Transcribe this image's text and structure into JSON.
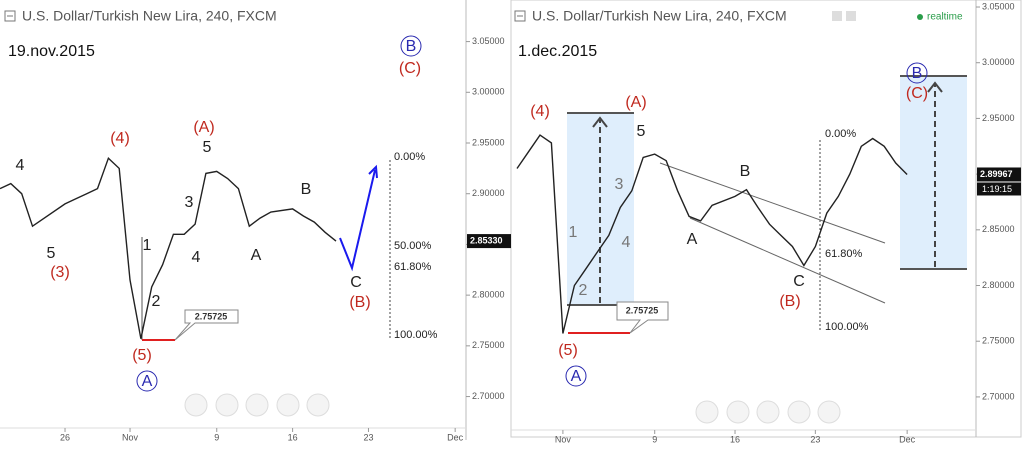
{
  "chart_data": [
    {
      "type": "line",
      "title": "U.S. Dollar/Turkish New Lira, 240, FXCM",
      "subtitle": "19.nov.2015",
      "x": [
        "2015-10-20",
        "2015-10-21",
        "2015-10-22",
        "2015-10-23",
        "2015-10-26",
        "2015-10-27",
        "2015-10-28",
        "2015-10-29",
        "2015-10-30",
        "2015-10-31",
        "2015-11-01",
        "2015-11-02",
        "2015-11-03",
        "2015-11-04",
        "2015-11-05",
        "2015-11-06",
        "2015-11-07",
        "2015-11-08",
        "2015-11-09",
        "2015-11-10",
        "2015-11-11",
        "2015-11-12",
        "2015-11-13",
        "2015-11-14",
        "2015-11-16",
        "2015-11-17",
        "2015-11-18",
        "2015-11-19",
        "2015-11-20"
      ],
      "series": [
        {
          "color": "#222222",
          "values": [
            2.905,
            2.91,
            2.9,
            2.868,
            2.89,
            2.895,
            2.9,
            2.905,
            2.935,
            2.925,
            2.815,
            2.757,
            2.808,
            2.83,
            2.86,
            2.86,
            2.87,
            2.92,
            2.922,
            2.915,
            2.905,
            2.868,
            2.876,
            2.882,
            2.885,
            2.878,
            2.872,
            2.862,
            2.8533
          ]
        }
      ],
      "xlim": [
        "2015-10-20",
        "2015-12-02"
      ],
      "xticks": [
        {
          "value": "2015-10-26",
          "label": "26"
        },
        {
          "value": "2015-11-01",
          "label": "Nov"
        },
        {
          "value": "2015-11-09",
          "label": "9"
        },
        {
          "value": "2015-11-16",
          "label": "16"
        },
        {
          "value": "2015-11-23",
          "label": "23"
        },
        {
          "value": "2015-12-01",
          "label": "Dec"
        }
      ],
      "ylim": [
        2.669,
        3.091
      ],
      "yticks": [
        {
          "value": 2.7,
          "label": "2.70000"
        },
        {
          "value": 2.75,
          "label": "2.75000"
        },
        {
          "value": 2.8,
          "label": "2.80000"
        },
        {
          "value": 2.85,
          "label": "2.85000"
        },
        {
          "value": 2.9,
          "label": "2.90000"
        },
        {
          "value": 2.95,
          "label": "2.95000"
        },
        {
          "value": 3.0,
          "label": "3.00000"
        },
        {
          "value": 3.05,
          "label": "3.05000"
        }
      ],
      "price_label": {
        "value": 2.8533,
        "label": "2.85330"
      },
      "callout": 2.75725,
      "labels": [
        "4",
        "5",
        "(3)",
        "(4)",
        "(A)",
        "5",
        "3",
        "4",
        "1",
        "2",
        "A",
        "B",
        "C",
        "(B)",
        "(5)",
        "A",
        "B",
        "(C)",
        "0.00%",
        "50.00%",
        "61.80%",
        "100.00%"
      ]
    },
    {
      "type": "line",
      "title": "U.S. Dollar/Turkish New Lira, 240, FXCM",
      "subtitle": "1.dec.2015",
      "status": "realtime",
      "countdown": "1:19:15",
      "x": [
        "2015-10-28",
        "2015-10-29",
        "2015-10-30",
        "2015-10-31",
        "2015-11-01",
        "2015-11-02",
        "2015-11-03",
        "2015-11-04",
        "2015-11-05",
        "2015-11-06",
        "2015-11-07",
        "2015-11-08",
        "2015-11-09",
        "2015-11-10",
        "2015-11-11",
        "2015-11-12",
        "2015-11-13",
        "2015-11-14",
        "2015-11-16",
        "2015-11-17",
        "2015-11-18",
        "2015-11-19",
        "2015-11-20",
        "2015-11-21",
        "2015-11-22",
        "2015-11-23",
        "2015-11-24",
        "2015-11-25",
        "2015-11-26",
        "2015-11-27",
        "2015-11-28",
        "2015-11-29",
        "2015-11-30",
        "2015-12-01"
      ],
      "series": [
        {
          "color": "#222222",
          "values": [
            2.905,
            2.92,
            2.935,
            2.928,
            2.757,
            2.8,
            2.815,
            2.83,
            2.845,
            2.87,
            2.885,
            2.915,
            2.918,
            2.912,
            2.885,
            2.862,
            2.858,
            2.872,
            2.88,
            2.886,
            2.87,
            2.855,
            2.845,
            2.835,
            2.818,
            2.835,
            2.865,
            2.88,
            2.9,
            2.925,
            2.932,
            2.925,
            2.91,
            2.89967
          ]
        }
      ],
      "xlim": [
        "2015-10-28",
        "2015-12-07"
      ],
      "xticks": [
        {
          "value": "2015-11-01",
          "label": "Nov"
        },
        {
          "value": "2015-11-09",
          "label": "9"
        },
        {
          "value": "2015-11-16",
          "label": "16"
        },
        {
          "value": "2015-11-23",
          "label": "23"
        },
        {
          "value": "2015-12-01",
          "label": "Dec"
        }
      ],
      "ylim": [
        2.6703,
        3.0563
      ],
      "yticks": [
        {
          "value": 2.7,
          "label": "2.70000"
        },
        {
          "value": 2.75,
          "label": "2.75000"
        },
        {
          "value": 2.8,
          "label": "2.80000"
        },
        {
          "value": 2.85,
          "label": "2.85000"
        },
        {
          "value": 2.9,
          "label": "2.90000"
        },
        {
          "value": 2.95,
          "label": "2.95000"
        },
        {
          "value": 3.0,
          "label": "3.00000"
        },
        {
          "value": 3.05,
          "label": "3.05000"
        }
      ],
      "price_label": {
        "value": 2.89967,
        "label": "2.89967"
      },
      "callout": 2.75725,
      "labels": [
        "(4)",
        "(A)",
        "5",
        "1",
        "2",
        "3",
        "4",
        "A",
        "B",
        "C",
        "(B)",
        "(5)",
        "A",
        "B",
        "(C)",
        "0.00%",
        "61.80%",
        "100.00%"
      ]
    }
  ]
}
